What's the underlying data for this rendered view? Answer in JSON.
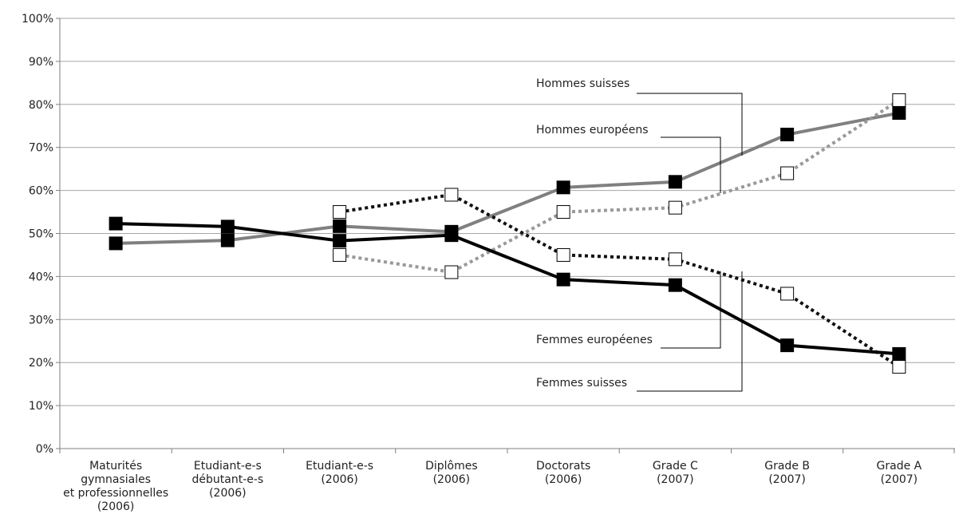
{
  "chart_data": {
    "type": "line",
    "title": "",
    "xlabel": "",
    "ylabel": "",
    "ylim": [
      0,
      100
    ],
    "grid": true,
    "y_ticks": [
      "0%",
      "10%",
      "20%",
      "30%",
      "40%",
      "50%",
      "60%",
      "70%",
      "80%",
      "90%",
      "100%"
    ],
    "categories": [
      [
        "Maturités",
        "gymnasiales",
        "et professionnelles",
        "(2006)"
      ],
      [
        "Etudiant-e-s",
        "débutant-e-s",
        "(2006)"
      ],
      [
        "Etudiant-e-s",
        "(2006)"
      ],
      [
        "Diplômes",
        "(2006)"
      ],
      [
        "Doctorats",
        "(2006)"
      ],
      [
        "Grade C",
        "(2007)"
      ],
      [
        "Grade B",
        "(2007)"
      ],
      [
        "Grade A",
        "(2007)"
      ]
    ],
    "series": [
      {
        "name": "Hommes suisses",
        "color": "#808080",
        "dash": "solid",
        "marker": "filled",
        "values": [
          47.7,
          48.4,
          51.7,
          50.4,
          60.7,
          62,
          73,
          78
        ]
      },
      {
        "name": "Hommes européens",
        "color": "#999999",
        "dash": "dotted",
        "marker": "open",
        "values": [
          null,
          null,
          45,
          41,
          55,
          56,
          64,
          81
        ]
      },
      {
        "name": "Femmes européenes",
        "color": "#111111",
        "dash": "dotted",
        "marker": "open",
        "values": [
          null,
          null,
          55,
          59,
          45,
          44,
          36,
          19
        ]
      },
      {
        "name": "Femmes suisses",
        "color": "#000000",
        "dash": "solid",
        "marker": "filled",
        "values": [
          52.3,
          51.6,
          48.3,
          49.6,
          39.3,
          38,
          24,
          22
        ]
      }
    ],
    "annotations": [
      {
        "label": "Hommes suisses",
        "series": 0
      },
      {
        "label": "Hommes européens",
        "series": 1
      },
      {
        "label": "Femmes européenes",
        "series": 2
      },
      {
        "label": "Femmes suisses",
        "series": 3
      }
    ]
  }
}
